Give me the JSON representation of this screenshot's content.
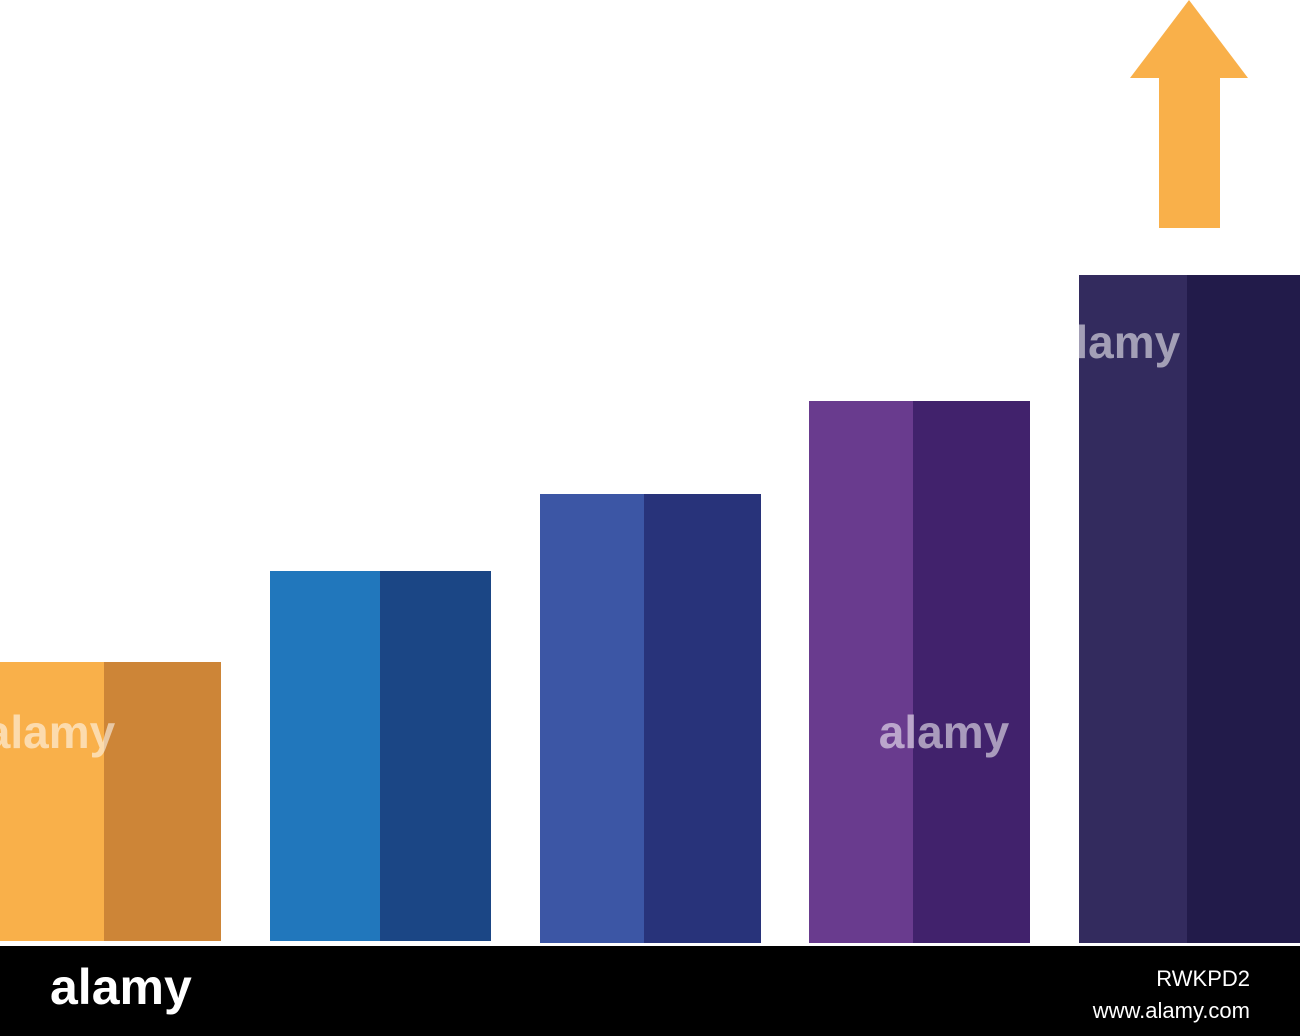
{
  "watermark": "alamy",
  "footer": {
    "logo": "alamy",
    "image_id": "RWKPD2",
    "url": "www.alamy.com"
  }
}
